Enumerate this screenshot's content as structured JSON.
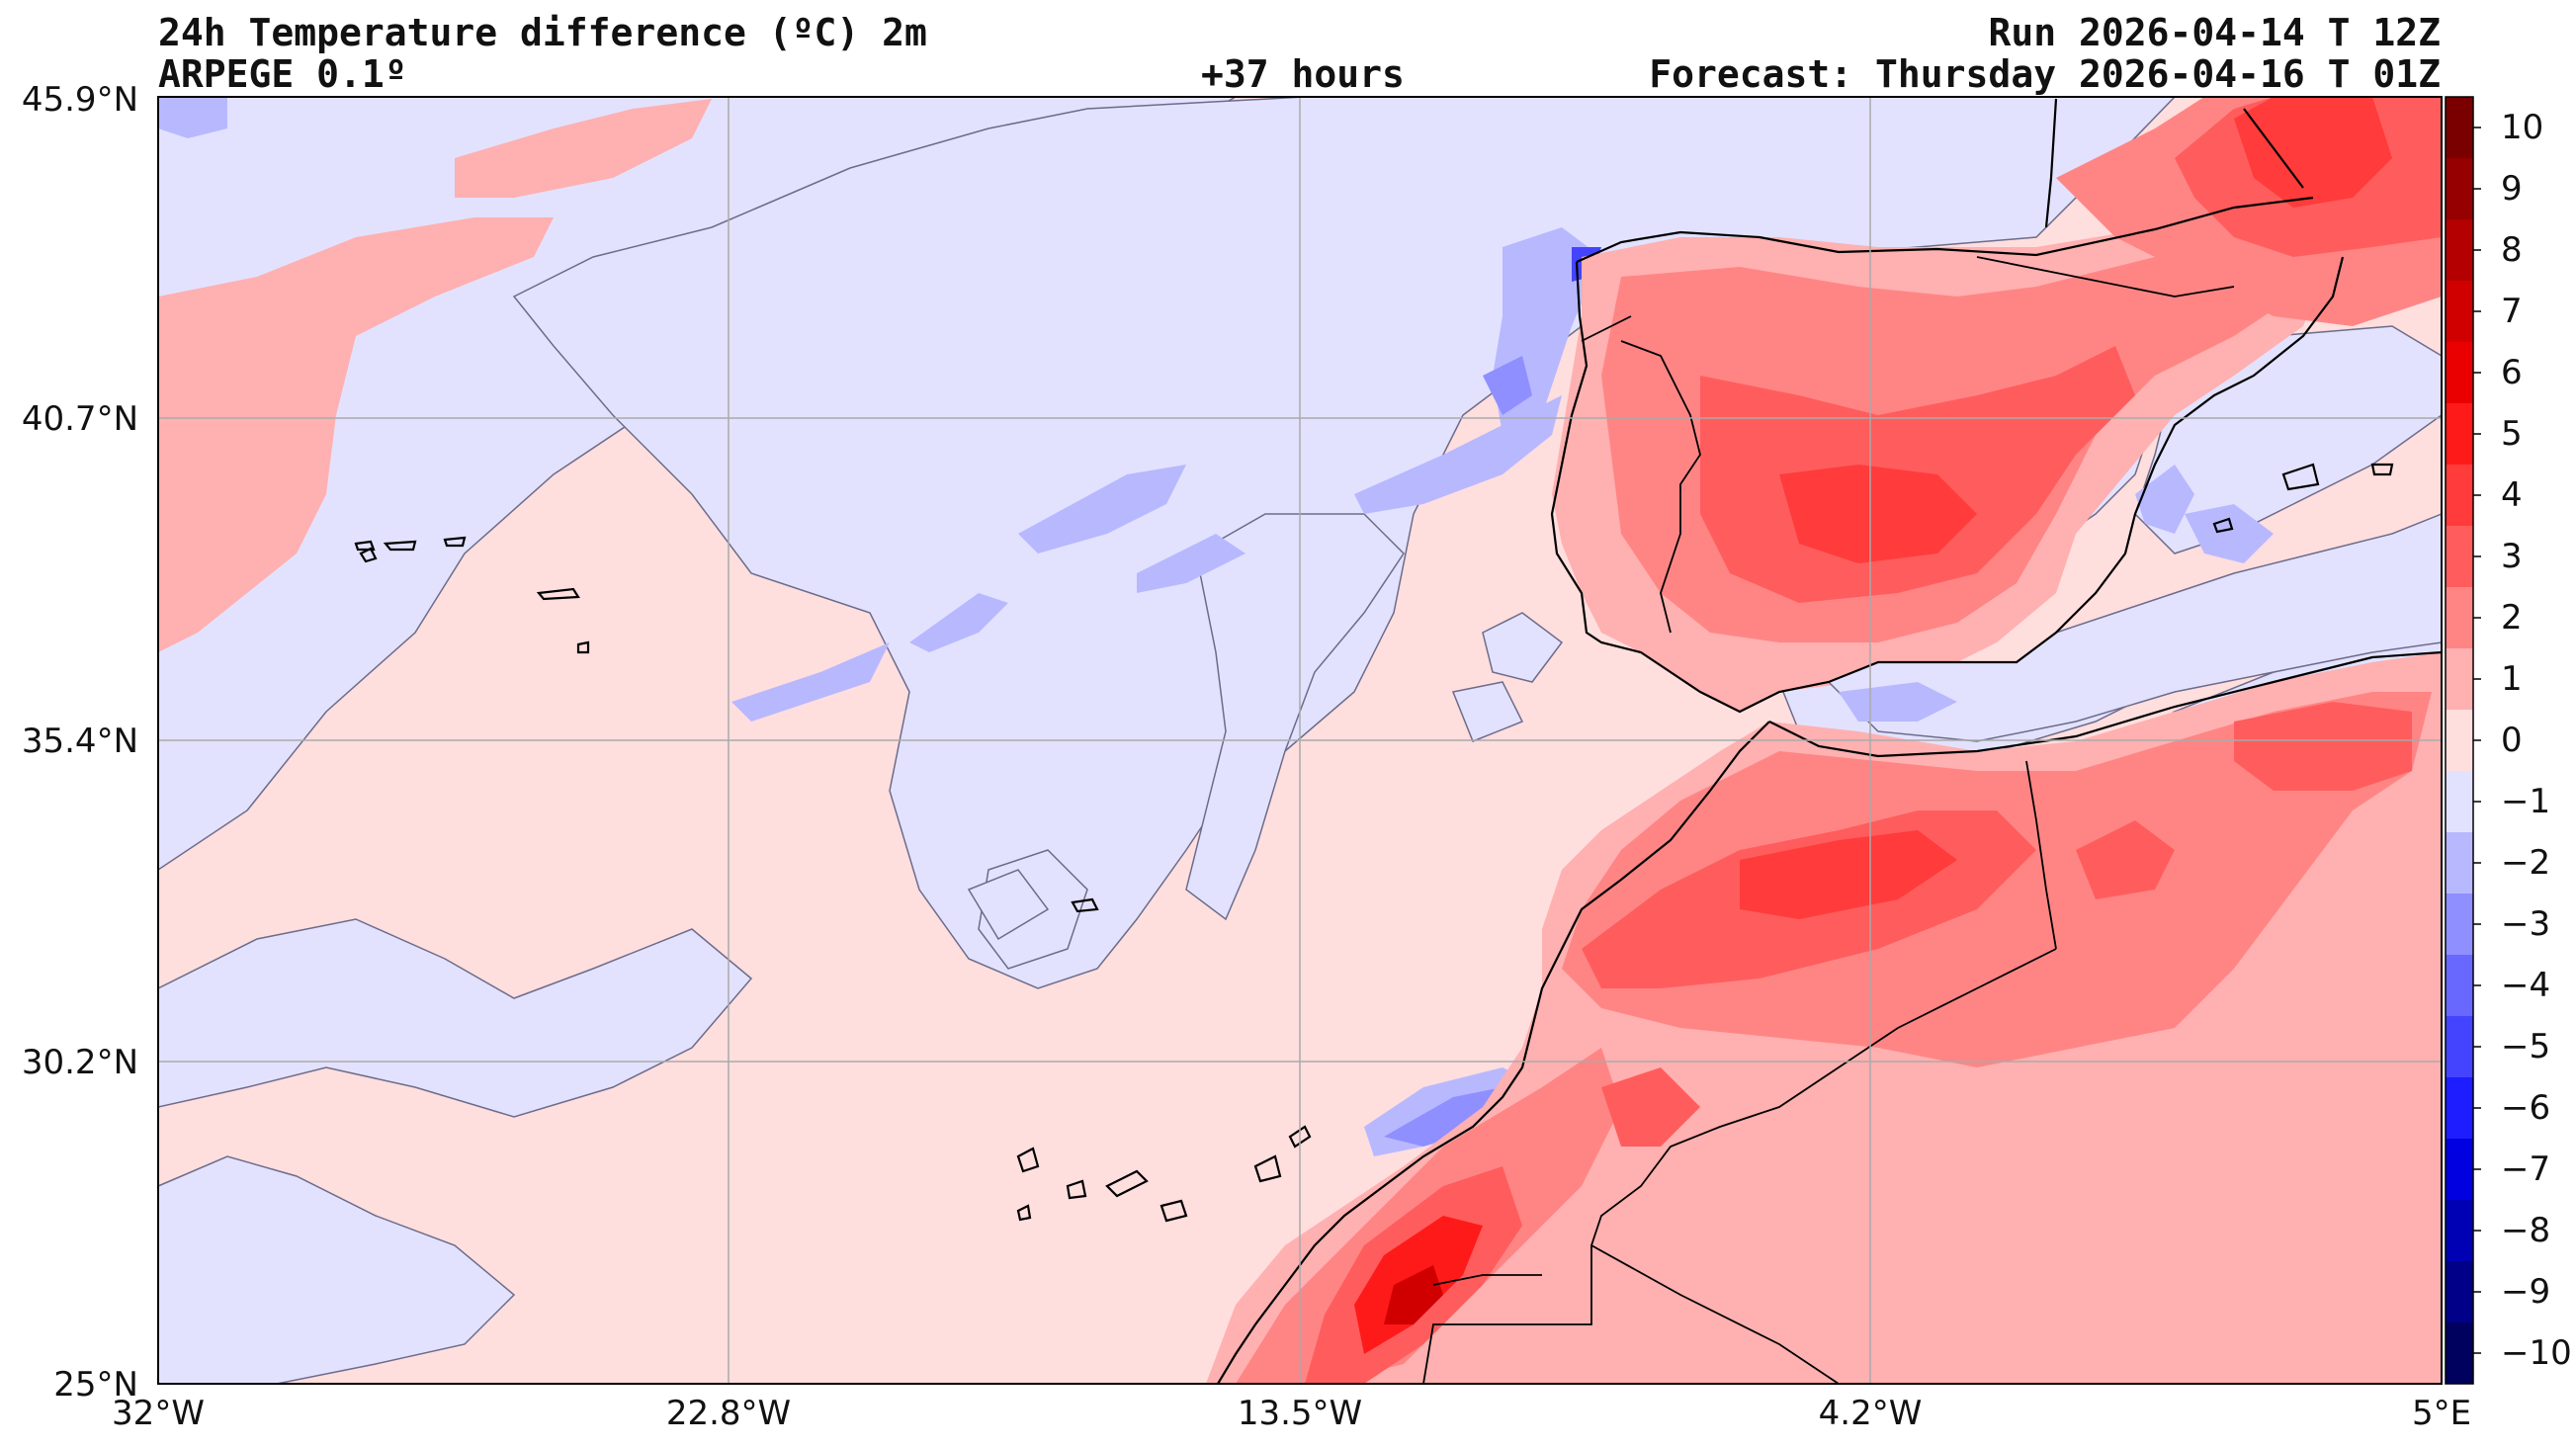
{
  "header": {
    "title_line1": "24h Temperature difference (ºC) 2m",
    "title_line2": "ARPEGE 0.1º",
    "lead_time": "+37 hours",
    "run": "Run 2026-04-14 T 12Z",
    "forecast": "Forecast: Thursday 2026-04-16 T 01Z"
  },
  "axes": {
    "lat_labels": [
      "45.9°N",
      "40.7°N",
      "35.4°N",
      "30.2°N",
      "25°N"
    ],
    "lon_labels": [
      "32°W",
      "22.8°W",
      "13.5°W",
      "4.2°W",
      "5°E"
    ]
  },
  "colorbar": {
    "labels": [
      "10",
      "9",
      "8",
      "7",
      "6",
      "5",
      "4",
      "3",
      "2",
      "1",
      "0",
      "−1",
      "−2",
      "−3",
      "−4",
      "−5",
      "−6",
      "−7",
      "−8",
      "−9",
      "−10"
    ],
    "colors": [
      "#7a0000",
      "#960000",
      "#b40000",
      "#d00000",
      "#ea0000",
      "#ff1a1a",
      "#ff3b3b",
      "#ff5d5d",
      "#ff8585",
      "#ffb0b0",
      "#ffdede",
      "#e2e2ff",
      "#b8b8ff",
      "#8f8fff",
      "#6868ff",
      "#4444ff",
      "#1d1dff",
      "#0000e0",
      "#0000b4",
      "#000088",
      "#00005e"
    ]
  },
  "legend_meaning": {
    "warm_colors": "#ff5d5d",
    "cool_colors": "#8f8fff",
    "ocean_light_pink": "#ffdede",
    "ocean_light_blue": "#e2e2ff"
  }
}
